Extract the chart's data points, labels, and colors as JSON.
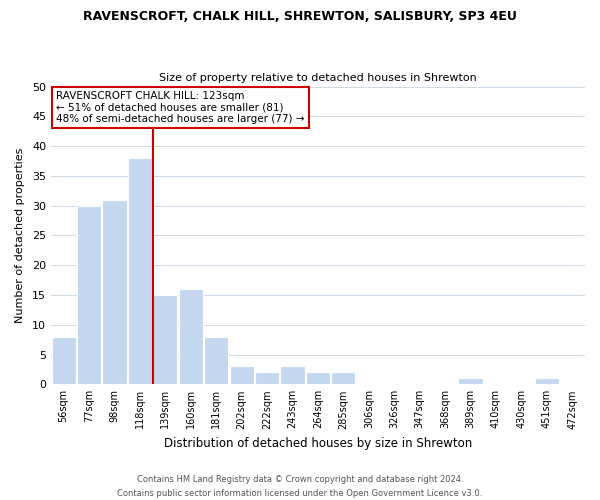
{
  "title": "RAVENSCROFT, CHALK HILL, SHREWTON, SALISBURY, SP3 4EU",
  "subtitle": "Size of property relative to detached houses in Shrewton",
  "xlabel": "Distribution of detached houses by size in Shrewton",
  "ylabel": "Number of detached properties",
  "categories": [
    "56sqm",
    "77sqm",
    "98sqm",
    "118sqm",
    "139sqm",
    "160sqm",
    "181sqm",
    "202sqm",
    "222sqm",
    "243sqm",
    "264sqm",
    "285sqm",
    "306sqm",
    "326sqm",
    "347sqm",
    "368sqm",
    "389sqm",
    "410sqm",
    "430sqm",
    "451sqm",
    "472sqm"
  ],
  "values": [
    8,
    30,
    31,
    38,
    15,
    16,
    8,
    3,
    2,
    3,
    2,
    2,
    0,
    0,
    0,
    0,
    1,
    0,
    0,
    1,
    0
  ],
  "bar_color": "#c5d8f0",
  "vline_x": 3.5,
  "vline_color": "#cc0000",
  "annotation_title": "RAVENSCROFT CHALK HILL: 123sqm",
  "annotation_line1": "← 51% of detached houses are smaller (81)",
  "annotation_line2": "48% of semi-detached houses are larger (77) →",
  "annotation_box_color": "#ffffff",
  "annotation_box_edge": "#cc0000",
  "ylim": [
    0,
    50
  ],
  "yticks": [
    0,
    5,
    10,
    15,
    20,
    25,
    30,
    35,
    40,
    45,
    50
  ],
  "footer_line1": "Contains HM Land Registry data © Crown copyright and database right 2024.",
  "footer_line2": "Contains public sector information licensed under the Open Government Licence v3.0.",
  "bg_color": "#ffffff",
  "grid_color": "#cdd9e5"
}
